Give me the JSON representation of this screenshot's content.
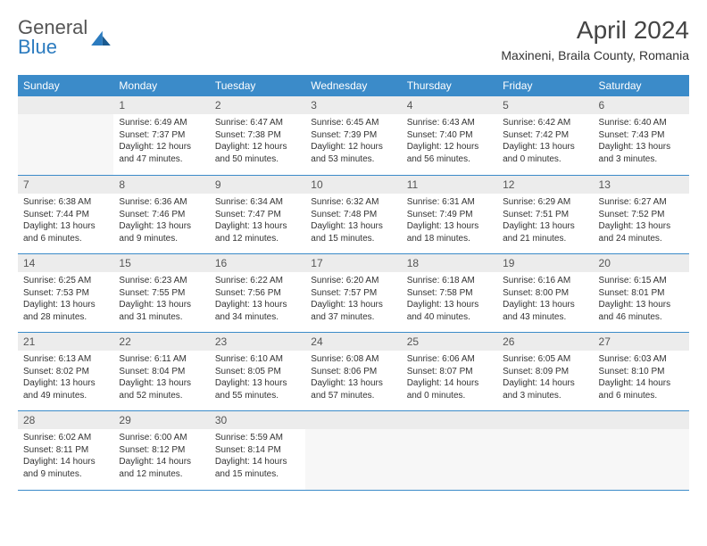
{
  "brand": {
    "line1": "General",
    "line2": "Blue"
  },
  "title": "April 2024",
  "location": "Maxineni, Braila County, Romania",
  "colors": {
    "header_bg": "#3b8bc9",
    "daynum_bg": "#ececec",
    "rule": "#3b8bc9"
  },
  "weekdays": [
    "Sunday",
    "Monday",
    "Tuesday",
    "Wednesday",
    "Thursday",
    "Friday",
    "Saturday"
  ],
  "weeks": [
    [
      null,
      {
        "n": "1",
        "sr": "6:49 AM",
        "ss": "7:37 PM",
        "dl": "12 hours and 47 minutes."
      },
      {
        "n": "2",
        "sr": "6:47 AM",
        "ss": "7:38 PM",
        "dl": "12 hours and 50 minutes."
      },
      {
        "n": "3",
        "sr": "6:45 AM",
        "ss": "7:39 PM",
        "dl": "12 hours and 53 minutes."
      },
      {
        "n": "4",
        "sr": "6:43 AM",
        "ss": "7:40 PM",
        "dl": "12 hours and 56 minutes."
      },
      {
        "n": "5",
        "sr": "6:42 AM",
        "ss": "7:42 PM",
        "dl": "13 hours and 0 minutes."
      },
      {
        "n": "6",
        "sr": "6:40 AM",
        "ss": "7:43 PM",
        "dl": "13 hours and 3 minutes."
      }
    ],
    [
      {
        "n": "7",
        "sr": "6:38 AM",
        "ss": "7:44 PM",
        "dl": "13 hours and 6 minutes."
      },
      {
        "n": "8",
        "sr": "6:36 AM",
        "ss": "7:46 PM",
        "dl": "13 hours and 9 minutes."
      },
      {
        "n": "9",
        "sr": "6:34 AM",
        "ss": "7:47 PM",
        "dl": "13 hours and 12 minutes."
      },
      {
        "n": "10",
        "sr": "6:32 AM",
        "ss": "7:48 PM",
        "dl": "13 hours and 15 minutes."
      },
      {
        "n": "11",
        "sr": "6:31 AM",
        "ss": "7:49 PM",
        "dl": "13 hours and 18 minutes."
      },
      {
        "n": "12",
        "sr": "6:29 AM",
        "ss": "7:51 PM",
        "dl": "13 hours and 21 minutes."
      },
      {
        "n": "13",
        "sr": "6:27 AM",
        "ss": "7:52 PM",
        "dl": "13 hours and 24 minutes."
      }
    ],
    [
      {
        "n": "14",
        "sr": "6:25 AM",
        "ss": "7:53 PM",
        "dl": "13 hours and 28 minutes."
      },
      {
        "n": "15",
        "sr": "6:23 AM",
        "ss": "7:55 PM",
        "dl": "13 hours and 31 minutes."
      },
      {
        "n": "16",
        "sr": "6:22 AM",
        "ss": "7:56 PM",
        "dl": "13 hours and 34 minutes."
      },
      {
        "n": "17",
        "sr": "6:20 AM",
        "ss": "7:57 PM",
        "dl": "13 hours and 37 minutes."
      },
      {
        "n": "18",
        "sr": "6:18 AM",
        "ss": "7:58 PM",
        "dl": "13 hours and 40 minutes."
      },
      {
        "n": "19",
        "sr": "6:16 AM",
        "ss": "8:00 PM",
        "dl": "13 hours and 43 minutes."
      },
      {
        "n": "20",
        "sr": "6:15 AM",
        "ss": "8:01 PM",
        "dl": "13 hours and 46 minutes."
      }
    ],
    [
      {
        "n": "21",
        "sr": "6:13 AM",
        "ss": "8:02 PM",
        "dl": "13 hours and 49 minutes."
      },
      {
        "n": "22",
        "sr": "6:11 AM",
        "ss": "8:04 PM",
        "dl": "13 hours and 52 minutes."
      },
      {
        "n": "23",
        "sr": "6:10 AM",
        "ss": "8:05 PM",
        "dl": "13 hours and 55 minutes."
      },
      {
        "n": "24",
        "sr": "6:08 AM",
        "ss": "8:06 PM",
        "dl": "13 hours and 57 minutes."
      },
      {
        "n": "25",
        "sr": "6:06 AM",
        "ss": "8:07 PM",
        "dl": "14 hours and 0 minutes."
      },
      {
        "n": "26",
        "sr": "6:05 AM",
        "ss": "8:09 PM",
        "dl": "14 hours and 3 minutes."
      },
      {
        "n": "27",
        "sr": "6:03 AM",
        "ss": "8:10 PM",
        "dl": "14 hours and 6 minutes."
      }
    ],
    [
      {
        "n": "28",
        "sr": "6:02 AM",
        "ss": "8:11 PM",
        "dl": "14 hours and 9 minutes."
      },
      {
        "n": "29",
        "sr": "6:00 AM",
        "ss": "8:12 PM",
        "dl": "14 hours and 12 minutes."
      },
      {
        "n": "30",
        "sr": "5:59 AM",
        "ss": "8:14 PM",
        "dl": "14 hours and 15 minutes."
      },
      null,
      null,
      null,
      null
    ]
  ]
}
